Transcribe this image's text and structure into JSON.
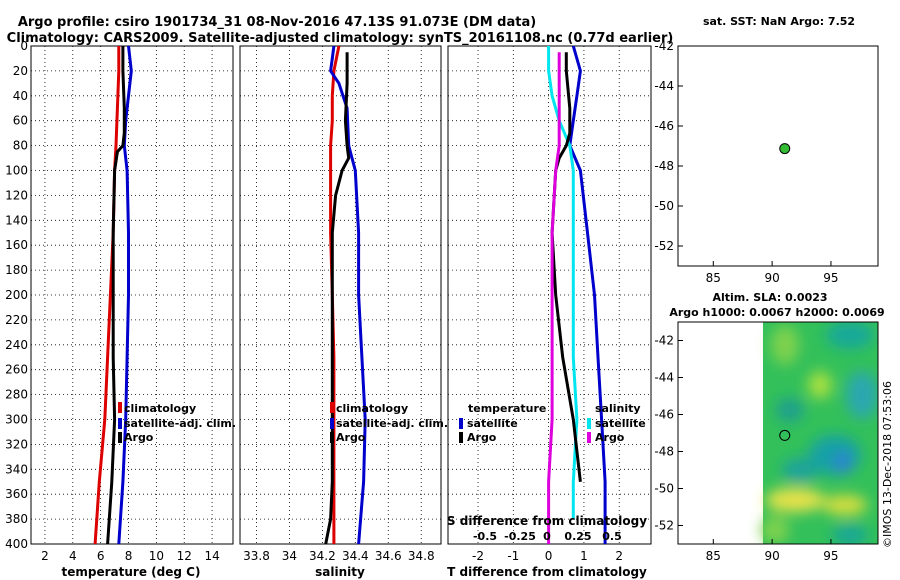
{
  "header": {
    "line1": "Argo profile: csiro 1901734_31 08-Nov-2016 47.13S 91.073E (DM data)",
    "line2": "Climatology: CARS2009. Satellite-adjusted climatology: synTS_20161108.nc (0.77d earlier)"
  },
  "colors": {
    "climatology": "#dd0000",
    "satellite": "#0000cc",
    "argo": "#000000",
    "satellite_s": "#00e5ee",
    "salinity": "#dd00dd"
  },
  "chart_data": [
    {
      "type": "line",
      "id": "temperature",
      "xlabel": "temperature (deg C)",
      "ylabel": "",
      "xlim": [
        1,
        15.5
      ],
      "ylim": [
        400,
        0
      ],
      "xticks": [
        2,
        4,
        6,
        8,
        10,
        12,
        14
      ],
      "yticks": [
        0,
        20,
        40,
        60,
        80,
        100,
        120,
        140,
        160,
        180,
        200,
        220,
        240,
        260,
        280,
        300,
        320,
        340,
        360,
        380,
        400
      ],
      "legend": [
        "climatology",
        "satellite-adj. clim.",
        "Argo"
      ],
      "series": [
        {
          "name": "climatology",
          "color": "#dd0000",
          "depth": [
            0,
            20,
            50,
            80,
            100,
            150,
            200,
            250,
            300,
            350,
            400
          ],
          "values": [
            7.3,
            7.3,
            7.2,
            7.1,
            7.0,
            6.9,
            6.7,
            6.5,
            6.3,
            5.9,
            5.6
          ]
        },
        {
          "name": "satellite-adj. clim.",
          "color": "#0000cc",
          "depth": [
            0,
            20,
            40,
            60,
            80,
            100,
            150,
            200,
            250,
            300,
            350,
            400
          ],
          "values": [
            8.0,
            8.2,
            8.0,
            7.8,
            7.7,
            7.9,
            8.0,
            8.0,
            7.9,
            7.8,
            7.6,
            7.3
          ]
        },
        {
          "name": "Argo",
          "color": "#000000",
          "depth": [
            0,
            20,
            50,
            70,
            80,
            85,
            100,
            150,
            200,
            250,
            300,
            350,
            400
          ],
          "values": [
            7.6,
            7.6,
            7.7,
            7.7,
            7.6,
            7.2,
            7.0,
            6.9,
            6.9,
            6.9,
            7.0,
            6.8,
            6.5
          ]
        }
      ]
    },
    {
      "type": "line",
      "id": "salinity",
      "xlabel": "salinity",
      "ylabel": "",
      "xlim": [
        33.7,
        34.92
      ],
      "ylim": [
        400,
        0
      ],
      "xticks": [
        33.8,
        34,
        34.2,
        34.4,
        34.6,
        34.8
      ],
      "xticklabels": [
        "33.8",
        "34",
        "34.2",
        "34.4",
        "34.6",
        "34.8"
      ],
      "legend": [
        "climatology",
        "satellite-adj. clim.",
        "Argo"
      ],
      "series": [
        {
          "name": "climatology",
          "color": "#dd0000",
          "depth": [
            0,
            20,
            40,
            60,
            80,
            100,
            150,
            200,
            250,
            300,
            350,
            400
          ],
          "values": [
            34.3,
            34.27,
            34.26,
            34.26,
            34.25,
            34.25,
            34.25,
            34.26,
            34.27,
            34.27,
            34.27,
            34.27
          ]
        },
        {
          "name": "satellite-adj. clim.",
          "color": "#0000cc",
          "depth": [
            0,
            10,
            20,
            30,
            50,
            80,
            100,
            150,
            200,
            250,
            300,
            350,
            400
          ],
          "values": [
            34.27,
            34.26,
            34.25,
            34.3,
            34.35,
            34.36,
            34.4,
            34.42,
            34.42,
            34.44,
            34.46,
            34.45,
            34.42
          ]
        },
        {
          "name": "Argo",
          "color": "#000000",
          "depth": [
            5,
            30,
            60,
            80,
            90,
            100,
            120,
            150,
            200,
            250,
            300,
            350,
            380,
            400
          ],
          "values": [
            34.35,
            34.35,
            34.34,
            34.35,
            34.36,
            34.32,
            34.28,
            34.26,
            34.26,
            34.26,
            34.26,
            34.26,
            34.25,
            34.22
          ]
        }
      ]
    },
    {
      "type": "line",
      "id": "differences",
      "xlabel": "T difference from climatology",
      "ylabel": "",
      "xlim": [
        -2.85,
        2.9
      ],
      "ylim": [
        400,
        0
      ],
      "xticks": [
        -2,
        -1,
        0,
        1,
        2
      ],
      "xticklabels": [
        "-2",
        "-1",
        "0",
        "1",
        "2"
      ],
      "top_axis_label": "S difference from climatology",
      "top_ticklabels": [
        "-0.5",
        "-0.25",
        "0",
        "0.25",
        "0.5"
      ],
      "legend_temperature": [
        "temperature",
        "satellite",
        "Argo"
      ],
      "legend_salinity": [
        "salinity",
        "satellite",
        "Argo"
      ],
      "series": [
        {
          "name": "temperature satellite",
          "color": "#0000cc",
          "depth": [
            0,
            20,
            40,
            60,
            80,
            100,
            150,
            200,
            250,
            300,
            350,
            400
          ],
          "values": [
            0.7,
            0.9,
            0.8,
            0.7,
            0.6,
            0.9,
            1.1,
            1.3,
            1.4,
            1.5,
            1.6,
            1.6
          ]
        },
        {
          "name": "salinity satellite",
          "color": "#00e5ee",
          "depth": [
            0,
            20,
            40,
            60,
            80,
            100,
            150,
            200,
            250,
            300,
            350,
            380
          ],
          "values": [
            0.0,
            0.0,
            0.1,
            0.3,
            0.6,
            0.7,
            0.7,
            0.7,
            0.7,
            0.8,
            0.7,
            0.7
          ]
        },
        {
          "name": "temperature Argo",
          "color": "#000000",
          "depth": [
            5,
            20,
            50,
            70,
            80,
            90,
            100,
            150,
            200,
            250,
            300,
            350
          ],
          "values": [
            0.5,
            0.5,
            0.6,
            0.6,
            0.5,
            0.3,
            0.2,
            0.1,
            0.2,
            0.4,
            0.7,
            0.9
          ]
        },
        {
          "name": "salinity Argo",
          "color": "#dd00dd",
          "depth": [
            5,
            20,
            40,
            60,
            80,
            100,
            150,
            200,
            250,
            300,
            350,
            400
          ],
          "values": [
            0.3,
            0.3,
            0.3,
            0.3,
            0.3,
            0.2,
            0.1,
            0.1,
            0.1,
            0.1,
            0.0,
            0.0
          ]
        }
      ]
    },
    {
      "type": "scatter",
      "id": "sst_map",
      "title": "sat. SST: NaN Argo: 7.52",
      "xlim": [
        82,
        99
      ],
      "ylim": [
        -53,
        -42
      ],
      "xticks": [
        85,
        90,
        95
      ],
      "yticks": [
        -42,
        -44,
        -46,
        -48,
        -50,
        -52
      ],
      "point": {
        "lon": 91.073,
        "lat": -47.13,
        "color": "#33bb33"
      }
    },
    {
      "type": "heatmap",
      "id": "sla_map",
      "title1": "Altim. SLA: 0.0023",
      "title2": "Argo h1000: 0.0067 h2000: 0.0069",
      "xlim": [
        82,
        99
      ],
      "ylim": [
        -53,
        -41
      ],
      "xticks": [
        85,
        90,
        95
      ],
      "yticks": [
        -42,
        -44,
        -46,
        -48,
        -50,
        -52
      ],
      "field_lon_range": [
        90,
        99
      ],
      "point": {
        "lon": 91.073,
        "lat": -47.13
      }
    }
  ],
  "footer": {
    "credit": "©IMOS 13-Dec-2018 07:53:06"
  }
}
